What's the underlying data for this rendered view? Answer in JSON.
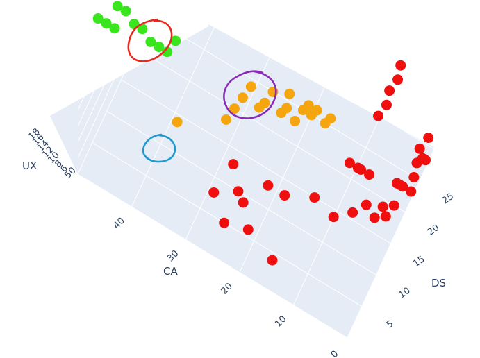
{
  "chart_data": {
    "type": "scatter",
    "x_axis": {
      "label": "DS",
      "ticks": [
        "5",
        "10",
        "15",
        "20",
        "25"
      ]
    },
    "y_axis": {
      "label": "CA",
      "ticks": [
        "0",
        "10",
        "20",
        "30",
        "40"
      ]
    },
    "z_axis": {
      "label": "UX",
      "ticks": [
        "50",
        "6",
        "8",
        "10",
        "12",
        "14",
        "16",
        "18"
      ]
    },
    "grid": true,
    "background": "#e5ecf6",
    "series": [
      {
        "color": "#39e51c",
        "points": [
          {
            "ds": 7,
            "ca": 50,
            "ux": 18
          },
          {
            "ds": 8,
            "ca": 49,
            "ux": 17
          },
          {
            "ds": 9,
            "ca": 48,
            "ux": 16
          },
          {
            "ds": 10,
            "ca": 48,
            "ux": 18
          },
          {
            "ds": 11,
            "ca": 47,
            "ux": 17
          },
          {
            "ds": 12,
            "ca": 46,
            "ux": 15
          },
          {
            "ds": 13,
            "ca": 45,
            "ux": 14
          },
          {
            "ds": 14,
            "ca": 44,
            "ux": 12
          },
          {
            "ds": 15,
            "ca": 43,
            "ux": 11
          },
          {
            "ds": 16,
            "ca": 42,
            "ux": 10
          },
          {
            "ds": 17,
            "ca": 41,
            "ux": 11
          }
        ]
      },
      {
        "color": "#f5a50e",
        "points": [
          {
            "ds": 12,
            "ca": 38,
            "ux": 6
          },
          {
            "ds": 14,
            "ca": 30,
            "ux": 8
          },
          {
            "ds": 15,
            "ca": 29,
            "ux": 9
          },
          {
            "ds": 16,
            "ca": 28,
            "ux": 10
          },
          {
            "ds": 17,
            "ca": 27,
            "ux": 11
          },
          {
            "ds": 18,
            "ca": 26,
            "ux": 8
          },
          {
            "ds": 18,
            "ca": 25,
            "ux": 9
          },
          {
            "ds": 19,
            "ca": 24,
            "ux": 10
          },
          {
            "ds": 20,
            "ca": 23,
            "ux": 7
          },
          {
            "ds": 20,
            "ca": 22,
            "ux": 8
          },
          {
            "ds": 21,
            "ca": 22,
            "ux": 9
          },
          {
            "ds": 21,
            "ca": 21,
            "ux": 6
          },
          {
            "ds": 22,
            "ca": 20,
            "ux": 7
          },
          {
            "ds": 22,
            "ca": 19,
            "ux": 8
          },
          {
            "ds": 23,
            "ca": 19,
            "ux": 6
          },
          {
            "ds": 23,
            "ca": 18,
            "ux": 7
          },
          {
            "ds": 24,
            "ca": 17,
            "ux": 5
          },
          {
            "ds": 24,
            "ca": 16,
            "ux": 6
          }
        ]
      },
      {
        "color": "#ef0f0f",
        "points": [
          {
            "ds": 2,
            "ca": 15,
            "ux": 6
          },
          {
            "ds": 3,
            "ca": 20,
            "ux": 7
          },
          {
            "ds": 4,
            "ca": 25,
            "ux": 5
          },
          {
            "ds": 5,
            "ca": 22,
            "ux": 8
          },
          {
            "ds": 6,
            "ca": 28,
            "ux": 6
          },
          {
            "ds": 7,
            "ca": 24,
            "ux": 7
          },
          {
            "ds": 8,
            "ca": 19,
            "ux": 9
          },
          {
            "ds": 9,
            "ca": 26,
            "ux": 8
          },
          {
            "ds": 10,
            "ca": 17,
            "ux": 7
          },
          {
            "ds": 11,
            "ca": 12,
            "ux": 8
          },
          {
            "ds": 12,
            "ca": 9,
            "ux": 6
          },
          {
            "ds": 13,
            "ca": 6,
            "ux": 7
          },
          {
            "ds": 14,
            "ca": 4,
            "ux": 8
          },
          {
            "ds": 15,
            "ca": 3,
            "ux": 6
          },
          {
            "ds": 16,
            "ca": 2,
            "ux": 7
          },
          {
            "ds": 17,
            "ca": 2,
            "ux": 5
          },
          {
            "ds": 18,
            "ca": 1,
            "ux": 6
          },
          {
            "ds": 19,
            "ca": 1,
            "ux": 8
          },
          {
            "ds": 20,
            "ca": 1,
            "ux": 7
          },
          {
            "ds": 21,
            "ca": 1,
            "ux": 6
          },
          {
            "ds": 22,
            "ca": 0,
            "ux": 5
          },
          {
            "ds": 23,
            "ca": 0,
            "ux": 6
          },
          {
            "ds": 24,
            "ca": 0,
            "ux": 7
          },
          {
            "ds": 25,
            "ca": 0,
            "ux": 8
          },
          {
            "ds": 26,
            "ca": 0,
            "ux": 6
          },
          {
            "ds": 27,
            "ca": 0,
            "ux": 5
          },
          {
            "ds": 28,
            "ca": 0,
            "ux": 7
          },
          {
            "ds": 20,
            "ca": 5,
            "ux": 14
          },
          {
            "ds": 21,
            "ca": 4,
            "ux": 15
          },
          {
            "ds": 22,
            "ca": 4,
            "ux": 16
          },
          {
            "ds": 23,
            "ca": 3,
            "ux": 17
          },
          {
            "ds": 24,
            "ca": 3,
            "ux": 18
          },
          {
            "ds": 12,
            "ca": 6,
            "ux": 14
          },
          {
            "ds": 13,
            "ca": 5,
            "ux": 13
          },
          {
            "ds": 14,
            "ca": 5,
            "ux": 12
          },
          {
            "ds": 15,
            "ca": 4,
            "ux": 11
          }
        ]
      }
    ],
    "annotations": [
      {
        "type": "freehand-circle",
        "color": "#e8281c",
        "target": "green cluster, top left"
      },
      {
        "type": "freehand-circle",
        "color": "#8a2ab8",
        "target": "green and orange points, center"
      },
      {
        "type": "freehand-circle",
        "color": "#1b9bd1",
        "target": "single orange point, left"
      }
    ]
  }
}
